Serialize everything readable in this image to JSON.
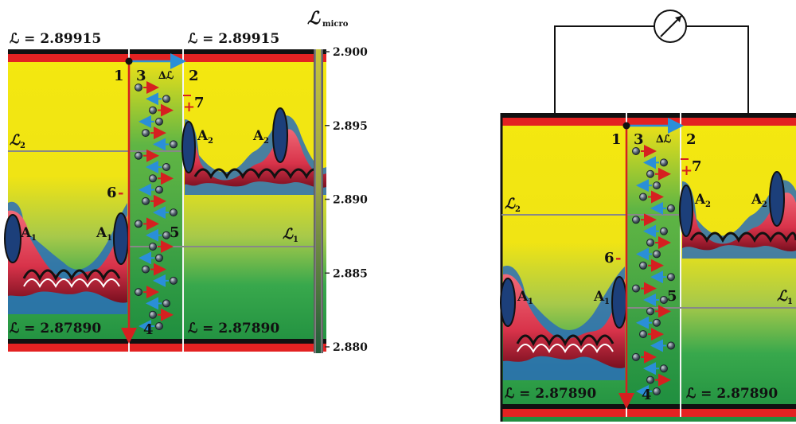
{
  "left_panel": {
    "top_left_label": "ℒ = 2.89915",
    "top_right_label": "ℒ = 2.89915",
    "bottom_left_label": "ℒ = 2.87890",
    "bottom_right_label": "ℒ = 2.87890",
    "level_l2": "ℒ",
    "level_l2_sub": "2",
    "level_l1": "ℒ",
    "level_l1_sub": "1",
    "marker_1": "1",
    "marker_2": "2",
    "marker_3": "3",
    "marker_4": "4",
    "marker_5": "5",
    "marker_6": "6",
    "marker_7": "7",
    "plus_sign": "+",
    "minus_sign": "-",
    "delta_label": "∆ℒ",
    "region_a1": "A",
    "region_a1_sub": "1",
    "region_a2": "A",
    "region_a2_sub": "2"
  },
  "scale": {
    "title": "ℒ",
    "title_sub": "micro",
    "ticks": [
      "2.900",
      "2.895",
      "2.890",
      "2.885",
      "2.880"
    ]
  },
  "right_panel": {
    "bottom_left_label": "ℒ = 2.87890",
    "bottom_right_label": "ℒ = 2.87890",
    "level_l2": "ℒ",
    "level_l2_sub": "2",
    "level_l1": "ℒ",
    "level_l1_sub": "1",
    "marker_1": "1",
    "marker_2": "2",
    "marker_3": "3",
    "marker_4": "4",
    "marker_5": "5",
    "marker_6": "6",
    "marker_7": "7",
    "plus_sign": "+",
    "minus_sign": "-",
    "delta_label": "∆ℒ",
    "region_a1": "A",
    "region_a1_sub": "1",
    "region_a2": "A",
    "region_a2_sub": "2"
  },
  "colors": {
    "yellow": "#f2e60e",
    "green": "#2fa24a",
    "stripe_red": "#e32222",
    "arrow_red": "#d62020",
    "arrow_blue": "#2a8fd8",
    "particle": "#3c4b57"
  }
}
